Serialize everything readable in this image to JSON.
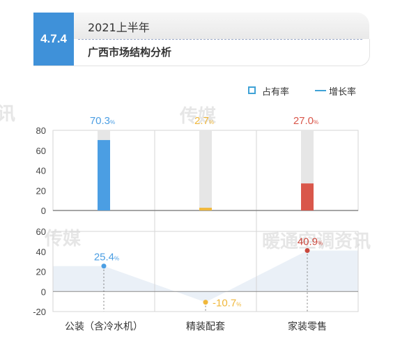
{
  "header": {
    "section_number": "4.7.4",
    "title": "2021上半年",
    "subtitle": "广西市场结构分析"
  },
  "legend": {
    "share_label": "占有率",
    "growth_label": "增长率"
  },
  "watermarks": [
    "讯",
    "传媒",
    "传媒",
    "暖通空调资讯"
  ],
  "chart_data": {
    "type": "bar",
    "categories": [
      "公装（含冷水机）",
      "精装配套",
      "家装零售"
    ],
    "series": [
      {
        "name": "占有率",
        "type": "bar",
        "values": [
          70.3,
          2.7,
          27.0
        ],
        "labels": [
          "70.3",
          "2.7",
          "27.0"
        ],
        "colors": [
          "#4b9ee3",
          "#f0b73a",
          "#d9574b"
        ]
      },
      {
        "name": "增长率",
        "type": "area",
        "values": [
          25.4,
          -10.7,
          40.9
        ],
        "labels": [
          "25.4",
          "-10.7",
          "40.9"
        ],
        "colors": [
          "#4b9ee3",
          "#f0b73a",
          "#c9473c"
        ]
      }
    ],
    "percent_suffix": "%",
    "top_panel": {
      "ylim": [
        0,
        80
      ],
      "ticks": [
        0,
        20,
        40,
        60,
        80
      ]
    },
    "bottom_panel": {
      "ylim": [
        -20,
        60
      ],
      "ticks": [
        -20,
        0,
        20,
        40,
        60
      ]
    },
    "colors": {
      "bar_track": "#e6e6e6",
      "area_fill": "#e8eef6",
      "grid": "#d5d5d5",
      "axis": "#888888"
    }
  }
}
